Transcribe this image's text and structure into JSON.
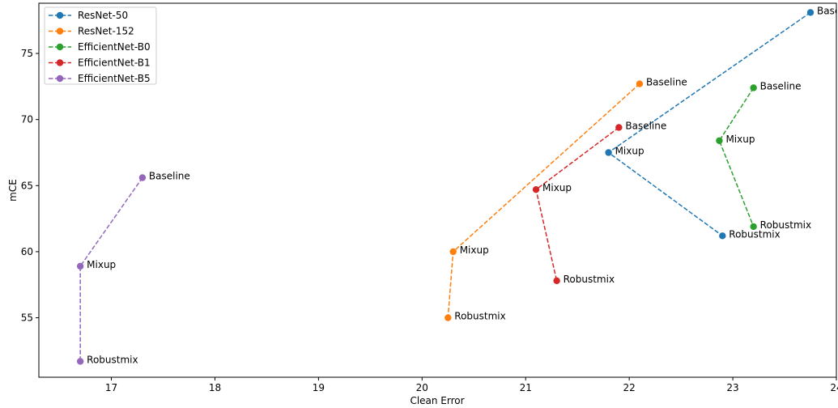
{
  "chart_data": {
    "type": "line",
    "title": "",
    "xlabel": "Clean Error",
    "ylabel": "mCE",
    "xlim": [
      16.3,
      24.0
    ],
    "ylim": [
      50.5,
      78.8
    ],
    "xticks": [
      17,
      18,
      19,
      20,
      21,
      22,
      23,
      24
    ],
    "yticks": [
      55,
      60,
      65,
      70,
      75
    ],
    "grid": false,
    "legend": "top-left",
    "line_style": "dashed",
    "series": [
      {
        "name": "ResNet-50",
        "color": "#1f77b4",
        "points": [
          {
            "x": 23.75,
            "y": 78.1,
            "label": "Baseline"
          },
          {
            "x": 21.8,
            "y": 67.5,
            "label": "Mixup"
          },
          {
            "x": 22.9,
            "y": 61.2,
            "label": "Robustmix"
          }
        ]
      },
      {
        "name": "ResNet-152",
        "color": "#ff7f0e",
        "points": [
          {
            "x": 22.1,
            "y": 72.7,
            "label": "Baseline"
          },
          {
            "x": 20.3,
            "y": 60.0,
            "label": "Mixup"
          },
          {
            "x": 20.25,
            "y": 55.0,
            "label": "Robustmix"
          }
        ]
      },
      {
        "name": "EfficientNet-B0",
        "color": "#2ca02c",
        "points": [
          {
            "x": 23.2,
            "y": 72.4,
            "label": "Baseline"
          },
          {
            "x": 22.87,
            "y": 68.4,
            "label": "Mixup"
          },
          {
            "x": 23.2,
            "y": 61.9,
            "label": "Robustmix"
          }
        ]
      },
      {
        "name": "EfficientNet-B1",
        "color": "#d62728",
        "points": [
          {
            "x": 21.9,
            "y": 69.4,
            "label": "Baseline"
          },
          {
            "x": 21.1,
            "y": 64.7,
            "label": "Mixup"
          },
          {
            "x": 21.3,
            "y": 57.8,
            "label": "Robustmix"
          }
        ]
      },
      {
        "name": "EfficientNet-B5",
        "color": "#9467bd",
        "points": [
          {
            "x": 17.3,
            "y": 65.6,
            "label": "Baseline"
          },
          {
            "x": 16.7,
            "y": 58.9,
            "label": "Mixup"
          },
          {
            "x": 16.7,
            "y": 51.7,
            "label": "Robustmix"
          }
        ]
      }
    ]
  }
}
